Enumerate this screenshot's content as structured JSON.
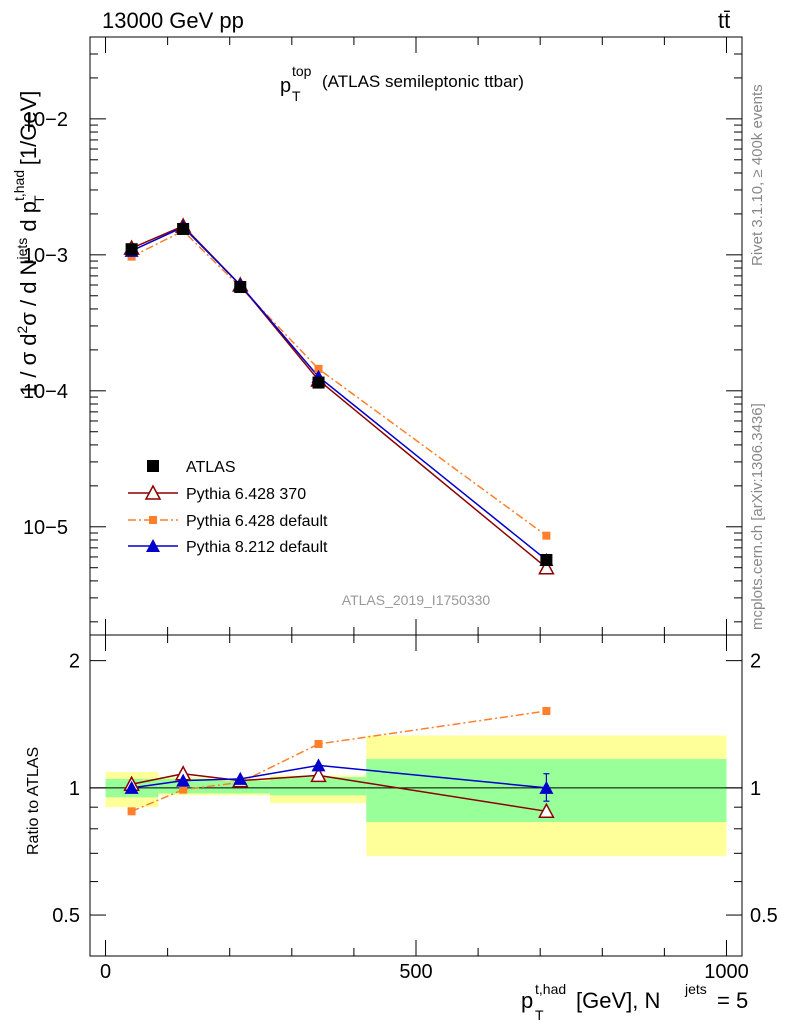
{
  "header": {
    "left": "13000 GeV pp",
    "right": "tt̄"
  },
  "title": {
    "main": "p",
    "sub": "T",
    "sup": "top",
    "rest": "(ATLAS semileptonic ttbar)"
  },
  "side_labels": {
    "rivet": "Rivet 3.1.10, ≥ 400k events",
    "mcplots": "mcplots.cern.ch [arXiv:1306.3436]"
  },
  "analysis_id": "ATLAS_2019_I1750330",
  "y_label_main": {
    "prefix": "1 / σ d",
    "sup1": "2",
    "mid": "σ /  d N",
    "sup2": "jets",
    "mid2": " d p",
    "sup3": "t,had",
    "sub3": "T",
    "unit": " [1/GeV]"
  },
  "y_label_ratio": "Ratio to ATLAS",
  "x_label": {
    "p": "p",
    "sub": "T",
    "sup": "t,had",
    "mid": " [GeV], N",
    "sup2": "jets",
    "end": " = 5"
  },
  "legend": [
    {
      "label": "ATLAS",
      "color": "#000000",
      "marker": "square-filled",
      "line": "none"
    },
    {
      "label": "Pythia 6.428 370",
      "color": "#8b0000",
      "marker": "triangle-open",
      "line": "solid"
    },
    {
      "label": "Pythia 6.428 default",
      "color": "#ff7f2a",
      "marker": "square-small",
      "line": "dashdot"
    },
    {
      "label": "Pythia 8.212 default",
      "color": "#0000cc",
      "marker": "triangle-filled",
      "line": "solid"
    }
  ],
  "chart_data": {
    "type": "line",
    "title": "p_T^top (ATLAS semileptonic ttbar)",
    "xlabel": "p_T^{t,had} [GeV], N^jets = 5",
    "ylabel": "1 / σ d²σ / d N^jets d p_T^{t,had} [1/GeV]",
    "xlim": [
      -25,
      1025
    ],
    "main_ylim": [
      1.6e-06,
      0.04
    ],
    "ratio_ylim": [
      0.4,
      2.3
    ],
    "main_yscale": "log",
    "ratio_yscale": "log",
    "x_ticks": [
      "0",
      "500",
      "1000"
    ],
    "main_y_ticks": [
      "10−5",
      "10−4",
      "10−3",
      "10−2"
    ],
    "ratio_y_ticks": [
      "0.5",
      "1",
      "2"
    ],
    "x": [
      42,
      125,
      217,
      343,
      710
    ],
    "bins": [
      [
        0,
        85
      ],
      [
        85,
        170
      ],
      [
        170,
        265
      ],
      [
        265,
        420
      ],
      [
        420,
        1000
      ]
    ],
    "series": [
      {
        "name": "ATLAS",
        "values": [
          0.0011,
          0.00155,
          0.00058,
          0.000115,
          5.7e-06
        ],
        "ratio": [
          1.0,
          1.0,
          1.0,
          1.0,
          1.0
        ]
      },
      {
        "name": "Pythia 6.428 370",
        "values": [
          0.00112,
          0.00163,
          0.0006,
          0.00012,
          5e-06
        ],
        "ratio": [
          1.02,
          1.08,
          1.04,
          1.07,
          0.88
        ]
      },
      {
        "name": "Pythia 6.428 default",
        "values": [
          0.00097,
          0.0015,
          0.00058,
          0.000145,
          8.6e-06
        ],
        "ratio": [
          0.88,
          0.99,
          1.03,
          1.27,
          1.52
        ]
      },
      {
        "name": "Pythia 8.212 default",
        "values": [
          0.00107,
          0.0016,
          0.0006,
          0.000127,
          5.7e-06
        ],
        "ratio": [
          1.0,
          1.04,
          1.05,
          1.13,
          1.0
        ]
      }
    ],
    "uncertainty_bands": {
      "inner_green": [
        [
          0.95,
          1.05
        ],
        [
          0.97,
          1.05
        ],
        [
          0.97,
          1.04
        ],
        [
          0.96,
          1.06
        ],
        [
          0.83,
          1.17
        ]
      ],
      "outer_yellow": [
        [
          0.9,
          1.09
        ],
        [
          0.96,
          1.06
        ],
        [
          0.96,
          1.05
        ],
        [
          0.92,
          1.07
        ],
        [
          0.69,
          1.33
        ]
      ]
    }
  }
}
